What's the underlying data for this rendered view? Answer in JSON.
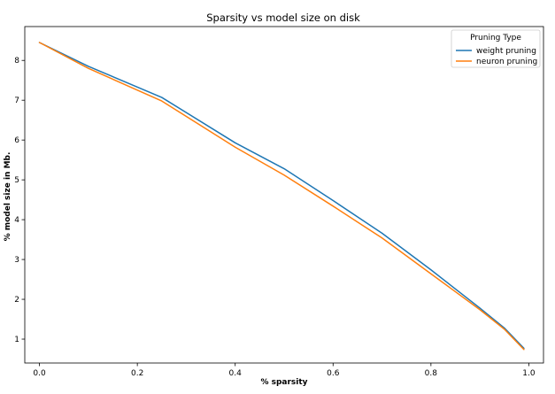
{
  "chart_data": {
    "type": "line",
    "title": "Sparsity vs model size on disk",
    "xlabel": "% sparsity",
    "ylabel": "% model size in Mb.",
    "xlim": [
      -0.03,
      1.03
    ],
    "ylim": [
      0.4,
      8.85
    ],
    "xticks": [
      0.0,
      0.2,
      0.4,
      0.6,
      0.8,
      1.0
    ],
    "xtick_labels": [
      "0.0",
      "0.2",
      "0.4",
      "0.6",
      "0.8",
      "1.0"
    ],
    "yticks": [
      1,
      2,
      3,
      4,
      5,
      6,
      7,
      8
    ],
    "ytick_labels": [
      "1",
      "2",
      "3",
      "4",
      "5",
      "6",
      "7",
      "8"
    ],
    "grid": false,
    "legend": {
      "title": "Pruning Type",
      "placement": "top-right"
    },
    "x": [
      0.0,
      0.1,
      0.25,
      0.4,
      0.5,
      0.6,
      0.7,
      0.8,
      0.9,
      0.95,
      0.99
    ],
    "series": [
      {
        "name": "weight pruning",
        "color": "#1f77b4",
        "values": [
          8.45,
          7.85,
          7.07,
          5.93,
          5.28,
          4.48,
          3.66,
          2.74,
          1.78,
          1.28,
          0.77
        ]
      },
      {
        "name": "neuron pruning",
        "color": "#ff7f0e",
        "values": [
          8.45,
          7.8,
          6.98,
          5.82,
          5.12,
          4.34,
          3.54,
          2.64,
          1.74,
          1.25,
          0.74
        ]
      }
    ]
  }
}
